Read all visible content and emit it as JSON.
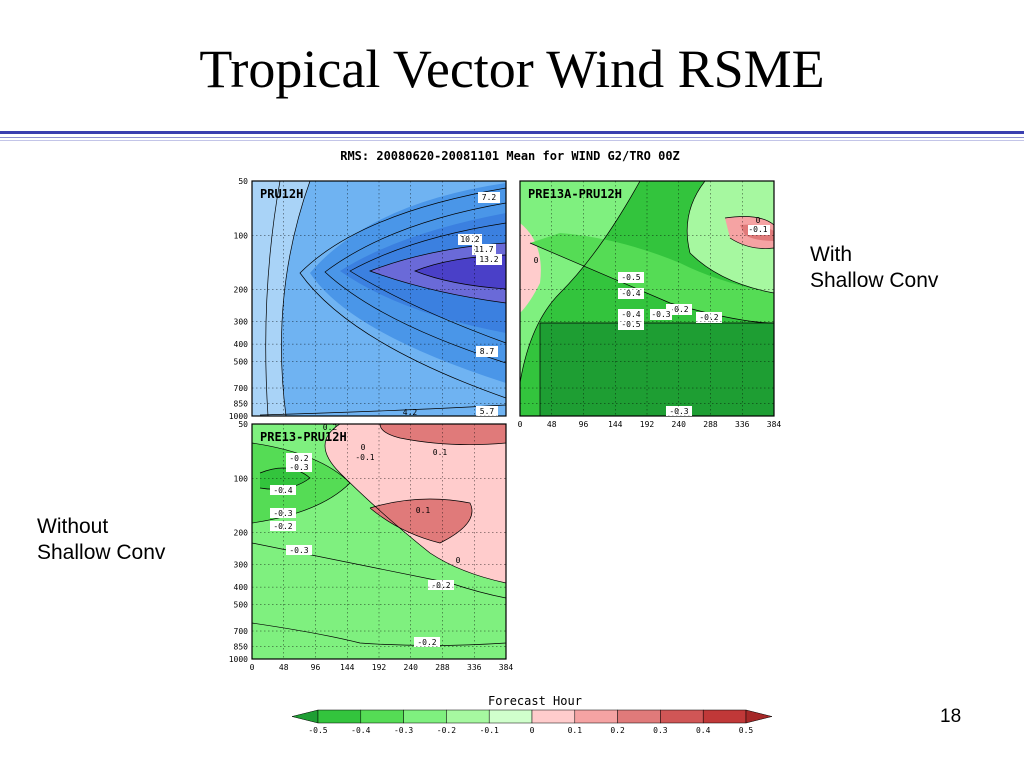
{
  "slide": {
    "title": "Tropical Vector Wind RSME",
    "label_with": [
      "With",
      "Shallow Conv"
    ],
    "label_without": [
      "Without",
      "Shallow Conv"
    ],
    "page_number": "18"
  },
  "chart_data": {
    "type": "heatmap",
    "title": "RMS: 20080620-20081101 Mean for WIND G2/TRO 00Z",
    "xlabel": "Forecast Hour",
    "x_ticks": [
      0,
      48,
      96,
      144,
      192,
      240,
      288,
      336,
      384
    ],
    "y_ticks": [
      50,
      100,
      200,
      300,
      400,
      500,
      700,
      850,
      1000
    ],
    "y_scale": "log",
    "grid": true,
    "panels": [
      {
        "name": "PRU12H",
        "colors": [
          "#a9d3f7",
          "#6fb3f2",
          "#4a96e8",
          "#3b80e0",
          "#6a6ad8",
          "#4a40c8"
        ],
        "contour_labels": [
          "7.2",
          "10.2",
          "11.7",
          "13.2",
          "8.7",
          "5.7",
          "4.2"
        ]
      },
      {
        "name": "PRE13A-PRU12H",
        "contour_labels": [
          "0",
          "-0.1",
          "0",
          "-0.5",
          "-0.4",
          "-0.2",
          "-0.4",
          "-0.5",
          "-0.3",
          "-0.2",
          "-0.3"
        ]
      },
      {
        "name": "PRE13-PRU12H",
        "contour_labels": [
          "0.2",
          "0",
          "-0.1",
          "-0.2",
          "-0.3",
          "0.1",
          "-0.4",
          "-0.3",
          "-0.2",
          "0.1",
          "-0.3",
          "0",
          "-0.2",
          "-0.2"
        ]
      }
    ],
    "colorbar": {
      "levels": [
        "-0.5",
        "-0.4",
        "-0.3",
        "-0.2",
        "-0.1",
        "0",
        "0.1",
        "0.2",
        "0.3",
        "0.4",
        "0.5"
      ],
      "colors": [
        "#1e9e33",
        "#33c43d",
        "#55dc55",
        "#7ff07f",
        "#a6f8a0",
        "#d0ffcc",
        "#ffcccc",
        "#f5a3a3",
        "#e07a7a",
        "#d05656",
        "#c03838",
        "#a52828"
      ]
    }
  }
}
